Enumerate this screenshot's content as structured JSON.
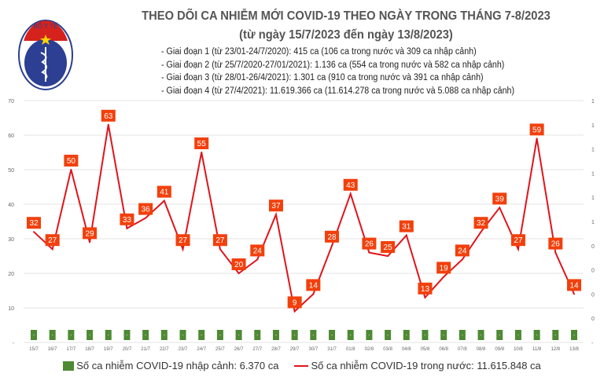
{
  "header": {
    "title": "THEO DÕI CA NHIỄM MỚI COVID-19 THEO NGÀY TRONG THÁNG 7-8/2023",
    "subtitle": "(từ ngày 15/7/2023 đến ngày 13/8/2023)",
    "stages": [
      "- Giai đoạn 1 (từ 23/01-24/7/2020): 415 ca (106 ca trong nước và 309 ca nhập cảnh)",
      "- Giai đoạn 2 (từ 25/7/2020-27/01/2021): 1.136 ca (554 ca trong nước và 582 ca nhập cảnh)",
      "- Giai đoạn 3 (từ 28/01-26/4/2021): 1.301 ca (910 ca trong nước và 391 ca nhập cảnh)",
      "- Giai đoạn 4 (từ 27/4/2021): 11.619.366 ca (11.614.278 ca trong nước và 5.088 ca nhập cảnh)"
    ],
    "logo": {
      "top_text": "BỘ Y TẾ",
      "bottom_text": "MINISTRY OF HEALTH"
    }
  },
  "colors": {
    "line": "#e0141b",
    "label_bg": "#f2400c",
    "bar": "#4e8a34",
    "grid": "#e3e3e3"
  },
  "chart_data": {
    "type": "bar+line",
    "categories": [
      "15/7",
      "16/7",
      "17/7",
      "18/7",
      "19/7",
      "20/7",
      "21/7",
      "22/7",
      "23/7",
      "24/7",
      "25/7",
      "26/7",
      "27/7",
      "28/7",
      "29/7",
      "30/7",
      "31/7",
      "01/8",
      "02/8",
      "03/8",
      "04/8",
      "05/8",
      "06/8",
      "07/8",
      "08/8",
      "09/8",
      "10/8",
      "11/8",
      "12/8",
      "13/8"
    ],
    "series": [
      {
        "name": "Số ca nhiễm COVID-19 nhập cảnh: 6.370 ca",
        "type": "bar",
        "axis": "right",
        "values": [
          0,
          0,
          0,
          0,
          0,
          0,
          0,
          0,
          0,
          0,
          0,
          0,
          0,
          0,
          0,
          0,
          0,
          0,
          0,
          0,
          0,
          0,
          0,
          0,
          0,
          0,
          0,
          0,
          0,
          0
        ],
        "data_label": "-"
      },
      {
        "name": "Số ca nhiễm COVID-19 trong nước: 11.615.848 ca",
        "type": "line",
        "axis": "left",
        "values": [
          32,
          27,
          50,
          29,
          63,
          33,
          36,
          41,
          27,
          55,
          27,
          20,
          24,
          37,
          9,
          14,
          28,
          43,
          26,
          25,
          31,
          13,
          19,
          24,
          32,
          39,
          27,
          59,
          26,
          14
        ]
      }
    ],
    "left_axis": {
      "ylim": [
        0,
        70
      ],
      "ticks": [
        "-",
        "10",
        "20",
        "30",
        "40",
        "50",
        "60",
        "70"
      ]
    },
    "right_axis": {
      "ticks": [
        "-",
        "0",
        "0",
        "0",
        "0",
        "1",
        "1",
        "1",
        "1",
        "1",
        "1"
      ]
    },
    "grid": true,
    "legend_position": "bottom"
  }
}
